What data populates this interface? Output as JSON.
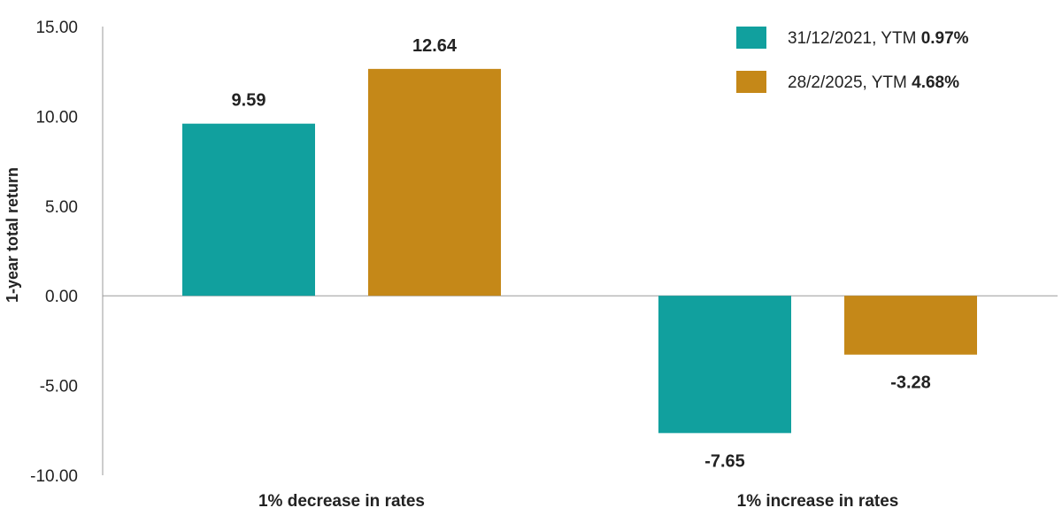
{
  "chart_data": {
    "type": "bar",
    "ylabel": "1-year total return",
    "ylim": [
      -10,
      15
    ],
    "yticks": [
      15,
      10,
      5,
      0,
      -5,
      -10
    ],
    "ytick_labels": [
      "15.00",
      "10.00",
      "5.00",
      "0.00",
      "-5.00",
      "-10.00"
    ],
    "categories": [
      "1% decrease in rates",
      "1% increase in rates"
    ],
    "grid": false,
    "legend_position": "top-right",
    "series": [
      {
        "name": "31/12/2021, YTM ",
        "name_bold": "0.97%",
        "color": "#11a09e",
        "values": [
          9.59,
          -7.65
        ],
        "labels": [
          "9.59",
          "-7.65"
        ]
      },
      {
        "name": "28/2/2025, YTM ",
        "name_bold": "4.68%",
        "color": "#c58818",
        "values": [
          12.64,
          -3.28
        ],
        "labels": [
          "12.64",
          "-3.28"
        ]
      }
    ]
  }
}
